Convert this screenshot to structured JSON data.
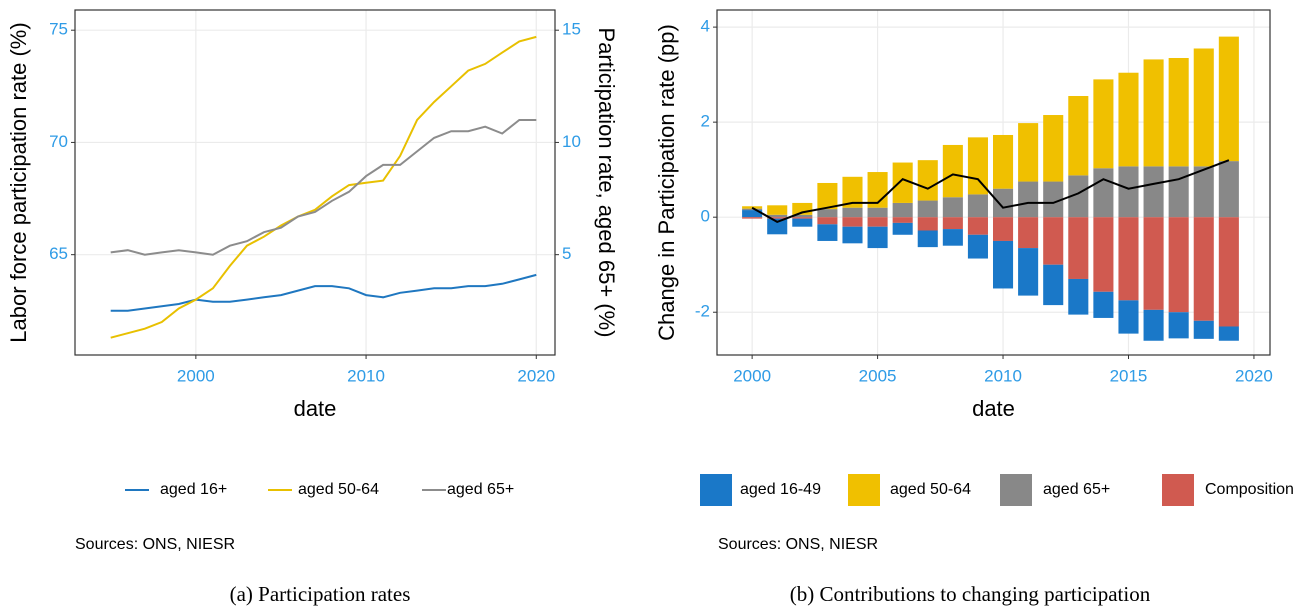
{
  "chart_data": [
    {
      "type": "line",
      "caption": "(a) Participation rates",
      "note": "Sources: ONS, NIESR",
      "xlabel": "date",
      "ylabel": "Labor force participation rate (%)",
      "y2label": "Participation rate, aged 65+ (%)",
      "x": [
        1995,
        1996,
        1997,
        1998,
        1999,
        2000,
        2001,
        2002,
        2003,
        2004,
        2005,
        2006,
        2007,
        2008,
        2009,
        2010,
        2011,
        2012,
        2013,
        2014,
        2015,
        2016,
        2017,
        2018,
        2019,
        2020
      ],
      "series": [
        {
          "name": "aged 16+",
          "color": "#1f77c0",
          "values": [
            62.5,
            62.5,
            62.6,
            62.7,
            62.8,
            63.0,
            62.9,
            62.9,
            63.0,
            63.1,
            63.2,
            63.4,
            63.6,
            63.6,
            63.5,
            63.2,
            63.1,
            63.3,
            63.4,
            63.5,
            63.5,
            63.6,
            63.6,
            63.7,
            63.9,
            64.1
          ]
        },
        {
          "name": "aged 50-64",
          "color": "#e8c000",
          "values": [
            61.3,
            61.5,
            61.7,
            62.0,
            62.6,
            63.0,
            63.5,
            64.5,
            65.4,
            65.8,
            66.3,
            66.7,
            67.0,
            67.6,
            68.1,
            68.2,
            68.3,
            69.4,
            71.0,
            71.8,
            72.5,
            73.2,
            73.5,
            74.0,
            74.5,
            74.7
          ]
        },
        {
          "name": "aged 65+",
          "color": "#8c8c8c",
          "axis": "y2",
          "values": [
            5.1,
            5.2,
            5.0,
            5.1,
            5.2,
            5.1,
            5.0,
            5.4,
            5.6,
            6.0,
            6.2,
            6.7,
            6.9,
            7.4,
            7.8,
            8.5,
            9.0,
            9.0,
            9.6,
            10.2,
            10.5,
            10.5,
            10.7,
            10.4,
            11.0,
            11.0
          ]
        }
      ],
      "xlim": [
        1992.9,
        2021.1
      ],
      "xticks": [
        2000,
        2010,
        2020
      ],
      "ylim": [
        60.53,
        75.9
      ],
      "yticks": [
        65,
        70,
        75
      ],
      "y2lim": [
        0.53,
        15.9
      ],
      "y2ticks": [
        5,
        10,
        15
      ],
      "grid": true,
      "legend": "bottom"
    },
    {
      "type": "bar",
      "caption": "(b) Contributions to changing participation",
      "note": "Sources: ONS, NIESR",
      "xlabel": "date",
      "ylabel": "Change in Participation rate (pp)",
      "x": [
        2000,
        2001,
        2002,
        2003,
        2004,
        2005,
        2006,
        2007,
        2008,
        2009,
        2010,
        2011,
        2012,
        2013,
        2014,
        2015,
        2016,
        2017,
        2018,
        2019
      ],
      "series": [
        {
          "name": "aged 16-49",
          "color": "#1a78c8",
          "values": [
            0.15,
            -0.33,
            -0.17,
            -0.35,
            -0.35,
            -0.45,
            -0.25,
            -0.35,
            -0.35,
            -0.5,
            -1.0,
            -1.0,
            -0.85,
            -0.75,
            -0.55,
            -0.7,
            -0.65,
            -0.55,
            -0.38,
            -0.3
          ]
        },
        {
          "name": "aged 50-64",
          "color": "#f0c000",
          "values": [
            0.05,
            0.2,
            0.25,
            0.55,
            0.65,
            0.75,
            0.85,
            0.85,
            1.1,
            1.2,
            1.13,
            1.23,
            1.4,
            1.67,
            1.87,
            1.97,
            2.25,
            2.28,
            2.48,
            2.62
          ]
        },
        {
          "name": "aged 65+",
          "color": "#888888",
          "values": [
            0.03,
            0.05,
            0.05,
            0.17,
            0.2,
            0.2,
            0.3,
            0.35,
            0.42,
            0.48,
            0.6,
            0.75,
            0.75,
            0.88,
            1.03,
            1.07,
            1.07,
            1.07,
            1.07,
            1.18
          ]
        },
        {
          "name": "Composition",
          "color": "#d05a50",
          "values": [
            -0.03,
            -0.03,
            -0.03,
            -0.15,
            -0.2,
            -0.2,
            -0.12,
            -0.28,
            -0.25,
            -0.37,
            -0.5,
            -0.65,
            -1.0,
            -1.3,
            -1.57,
            -1.75,
            -1.95,
            -2.0,
            -2.18,
            -2.3
          ]
        },
        {
          "type": "line",
          "color": "#000000",
          "values": [
            0.2,
            -0.1,
            0.1,
            0.2,
            0.3,
            0.3,
            0.8,
            0.6,
            0.9,
            0.8,
            0.2,
            0.3,
            0.3,
            0.5,
            0.8,
            0.6,
            0.7,
            0.8,
            1.0,
            1.2
          ]
        }
      ],
      "xlim": [
        1998.6,
        2020.64
      ],
      "xticks": [
        2000,
        2005,
        2010,
        2015,
        2020
      ],
      "ylim": [
        -2.9,
        4.36
      ],
      "yticks": [
        -2,
        0,
        2,
        4
      ],
      "grid": true,
      "legend": "bottom"
    }
  ]
}
